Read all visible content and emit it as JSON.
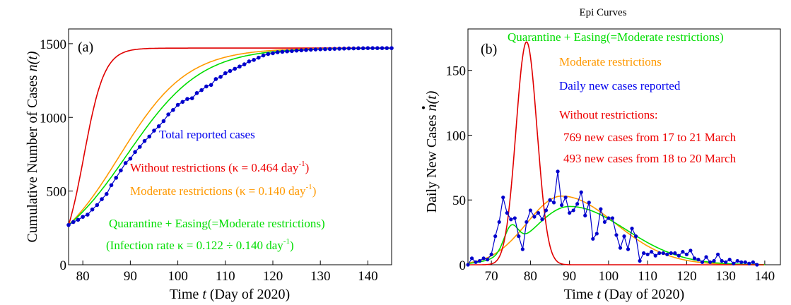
{
  "chart_data": [
    {
      "type": "line",
      "panel_label": "(a)",
      "title": "",
      "xlabel_parts": [
        "Time  ",
        "t",
        " (Day of 2020)"
      ],
      "ylabel_parts": [
        "Cumulative Number of Cases ",
        "n(t)"
      ],
      "xlim": [
        77,
        145
      ],
      "ylim": [
        0,
        1600
      ],
      "xticks": [
        80,
        90,
        100,
        110,
        120,
        130,
        140
      ],
      "yticks": [
        0,
        500,
        1000,
        1500
      ],
      "model_params": {
        "N": 1470,
        "n0": 270,
        "t0": 77
      },
      "series": [
        {
          "name": "Without restrictions",
          "color": "#e00000",
          "kappa": 0.464
        },
        {
          "name": "Moderate restrictions",
          "color": "#ff9900",
          "kappa": 0.14
        },
        {
          "name": "Quarantine + Easing(=Moderate restrictions)",
          "color": "#00dd00",
          "kappa_range": [
            0.122,
            0.14
          ]
        },
        {
          "name": "Total reported cases",
          "color": "#0000cc",
          "x": [
            77,
            78,
            79,
            80,
            81,
            82,
            83,
            84,
            85,
            86,
            87,
            88,
            89,
            90,
            91,
            92,
            93,
            94,
            95,
            96,
            97,
            98,
            99,
            100,
            101,
            102,
            103,
            104,
            105,
            106,
            107,
            108,
            109,
            110,
            111,
            112,
            113,
            114,
            115,
            116,
            117,
            118,
            119,
            120,
            121,
            122,
            123,
            124,
            125,
            126,
            127,
            128,
            129,
            130,
            131,
            132,
            133,
            134,
            135,
            136,
            137,
            138,
            139,
            140,
            141,
            142,
            143,
            144,
            145
          ],
          "y": [
            270,
            290,
            305,
            325,
            340,
            375,
            405,
            445,
            480,
            540,
            590,
            640,
            690,
            720,
            765,
            800,
            840,
            870,
            910,
            940,
            975,
            1020,
            1050,
            1085,
            1105,
            1125,
            1130,
            1165,
            1185,
            1210,
            1220,
            1260,
            1275,
            1300,
            1315,
            1330,
            1345,
            1360,
            1380,
            1390,
            1405,
            1420,
            1430,
            1435,
            1442,
            1445,
            1448,
            1450,
            1453,
            1455,
            1457,
            1459,
            1461,
            1462,
            1463,
            1464,
            1465,
            1466,
            1467,
            1468,
            1468,
            1469,
            1469,
            1470,
            1470,
            1470,
            1470,
            1470,
            1470
          ]
        }
      ],
      "annotations": [
        {
          "text": "Total reported cases",
          "color": "#0000ee"
        },
        {
          "text": "Without restrictions (κ = 0.464 day",
          "sup": "-1",
          "tail": ")",
          "color": "#ee0000"
        },
        {
          "text": "Moderate restrictions (κ = 0.140 day",
          "sup": "-1",
          "tail": ")",
          "color": "#ff9900"
        },
        {
          "text": "Quarantine + Easing(=Moderate restrictions)",
          "sup": "",
          "tail": "",
          "color": "#00dd00"
        },
        {
          "text": "(Infection rate κ = 0.122 ÷ 0.140 day",
          "sup": "-1",
          "tail": ")",
          "color": "#00dd00"
        }
      ]
    },
    {
      "type": "line",
      "panel_label": "(b)",
      "title": "Epi Curves",
      "xlabel_parts": [
        "Time  ",
        "t",
        " (Day of 2020)"
      ],
      "ylabel_parts": [
        "Daily New Cases ",
        "n(t)"
      ],
      "xlim": [
        64,
        144
      ],
      "ylim": [
        0,
        182
      ],
      "xticks": [
        70,
        80,
        90,
        100,
        110,
        120,
        130,
        140
      ],
      "yticks": [
        0,
        50,
        100,
        150
      ],
      "series": [
        {
          "name": "Without restrictions",
          "color": "#e00000",
          "peak_day": 79,
          "peak_value": 172,
          "width": 2.7
        },
        {
          "name": "Moderate restrictions",
          "color": "#ff9900",
          "peak_day": 88,
          "peak_value": 53,
          "width": 10.5
        },
        {
          "name": "Quarantine + Easing(=Moderate restrictions)",
          "color": "#00dd00",
          "bump1_day": 75,
          "bump1_value": 38,
          "bump1_width": 1.8,
          "peak_day": 90,
          "peak_value": 45,
          "width": 12.5
        },
        {
          "name": "Daily new cases reported",
          "color": "#0000cc",
          "x": [
            64,
            65,
            66,
            67,
            68,
            69,
            70,
            71,
            72,
            73,
            74,
            75,
            76,
            77,
            78,
            79,
            80,
            81,
            82,
            83,
            84,
            85,
            86,
            87,
            88,
            89,
            90,
            91,
            92,
            93,
            94,
            95,
            96,
            97,
            98,
            99,
            100,
            101,
            102,
            103,
            104,
            105,
            106,
            107,
            108,
            109,
            110,
            111,
            112,
            113,
            114,
            115,
            116,
            117,
            118,
            119,
            120,
            121,
            122,
            123,
            124,
            125,
            126,
            127,
            128,
            129,
            130,
            131,
            132,
            133,
            134,
            135,
            136,
            137,
            138
          ],
          "y": [
            0,
            5,
            2,
            3,
            5,
            4,
            8,
            22,
            33,
            52,
            40,
            35,
            36,
            22,
            12,
            33,
            42,
            37,
            40,
            35,
            42,
            50,
            48,
            72,
            46,
            52,
            40,
            42,
            47,
            56,
            38,
            48,
            20,
            24,
            43,
            33,
            36,
            36,
            23,
            13,
            22,
            12,
            28,
            22,
            3,
            9,
            8,
            10,
            7,
            9,
            9,
            8,
            9,
            9,
            7,
            10,
            8,
            11,
            5,
            4,
            2,
            6,
            2,
            3,
            8,
            3,
            2,
            4,
            1,
            3,
            2,
            2,
            1,
            2,
            0
          ]
        }
      ],
      "annotations": [
        {
          "text": "Quarantine + Easing(=Moderate restrictions)",
          "color": "#00dd00"
        },
        {
          "text": "Moderate restrictions",
          "color": "#ff9900"
        },
        {
          "text": "Daily new cases reported",
          "color": "#0000ee"
        },
        {
          "text": "Without restrictions:",
          "color": "#ee0000"
        },
        {
          "text": "769 new cases from 17 to 21 March",
          "color": "#ee0000"
        },
        {
          "text": "493 new cases from 18 to 20 March",
          "color": "#ee0000"
        }
      ]
    }
  ]
}
